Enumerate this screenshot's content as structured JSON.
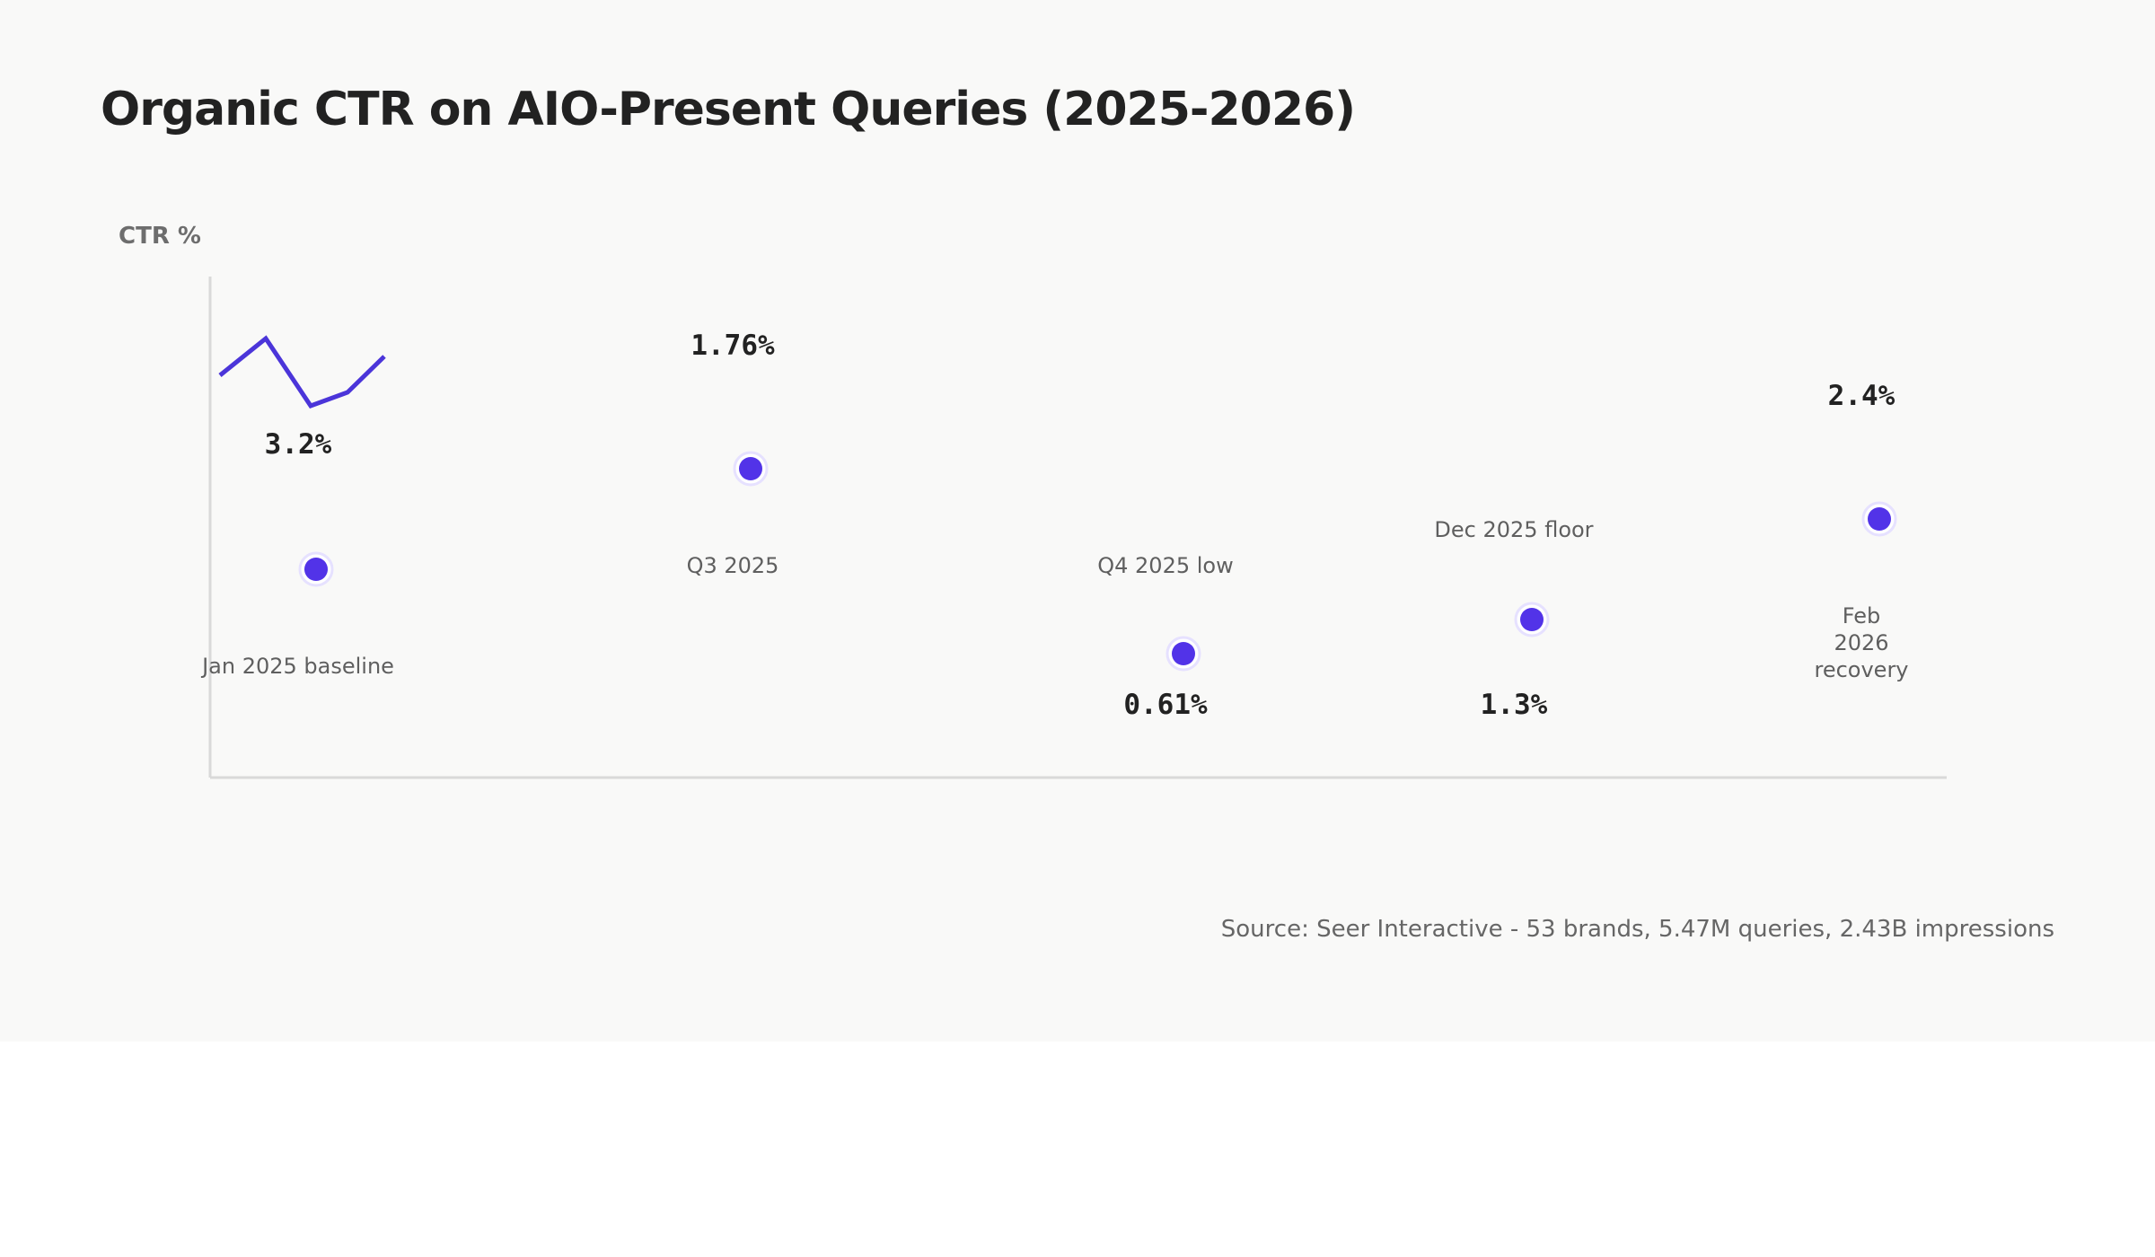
{
  "chart_data": {
    "type": "scatter",
    "title": "Organic CTR on AIO-Present Queries (2025-2026)",
    "ylabel": "CTR %",
    "categories": [
      "Jan 2025 baseline",
      "Q3 2025",
      "Q4 2025 low",
      "Dec 2025 floor",
      "Feb 2026 recovery"
    ],
    "value_labels": [
      "3.2%",
      "1.76%",
      "0.61%",
      "1.3%",
      "2.4%"
    ],
    "values": [
      3.2,
      1.76,
      0.61,
      1.3,
      2.4
    ],
    "source": "Source: Seer Interactive - 53 brands, 5.47M queries, 2.43B impressions",
    "colors": {
      "series": "#5233e8",
      "sparkline": "#4b35d9",
      "axis": "#d9d9d9",
      "background": "#f9f9f8"
    },
    "grid": false
  }
}
